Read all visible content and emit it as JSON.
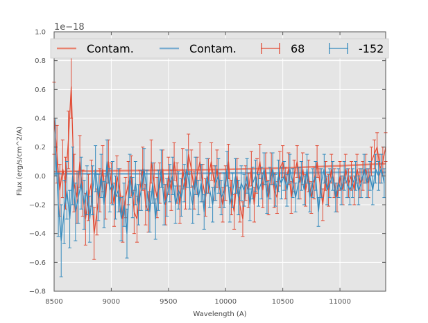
{
  "chart_data": {
    "type": "line",
    "title": "",
    "xlabel": "Wavelength (A)",
    "ylabel": "Flux (erg/s/cm^2/A)",
    "offset_label": "1e−18",
    "xlim": [
      8500,
      11400
    ],
    "ylim": [
      -0.8,
      1.0
    ],
    "xticks": [
      8500,
      9000,
      9500,
      10000,
      10500,
      11000
    ],
    "yticks": [
      -0.8,
      -0.6,
      -0.4,
      -0.2,
      0.0,
      0.2,
      0.4,
      0.6,
      0.8,
      1.0
    ],
    "ytick_labels": [
      "−0.8",
      "−0.6",
      "−0.4",
      "−0.2",
      "0.0",
      "0.2",
      "0.4",
      "0.6",
      "0.8",
      "1.0"
    ],
    "grid": true,
    "legend_position": "top",
    "colors": {
      "red": "#e24a33",
      "blue": "#348abd",
      "background": "#e5e5e5",
      "grid": "#ffffff"
    },
    "series": [
      {
        "name": "Contam.",
        "kind": "line",
        "color": "#e8826f",
        "x": [
          8500,
          9000,
          9500,
          10000,
          10500,
          11000,
          11400
        ],
        "values": [
          0.03,
          0.035,
          0.04,
          0.045,
          0.055,
          0.07,
          0.085
        ]
      },
      {
        "name": "Contam.",
        "kind": "line",
        "color": "#78acd0",
        "x": [
          8500,
          9000,
          9500,
          10000,
          10500,
          11000,
          11400
        ],
        "values": [
          0.015,
          0.015,
          0.015,
          0.02,
          0.02,
          0.025,
          0.025
        ]
      },
      {
        "name": "68",
        "kind": "errorbar",
        "color": "#e24a33",
        "x": [
          8500,
          8525,
          8550,
          8575,
          8600,
          8625,
          8650,
          8675,
          8700,
          8725,
          8750,
          8775,
          8800,
          8825,
          8850,
          8875,
          8900,
          8925,
          8950,
          8975,
          9000,
          9025,
          9050,
          9075,
          9100,
          9125,
          9150,
          9175,
          9200,
          9225,
          9250,
          9275,
          9300,
          9325,
          9350,
          9375,
          9400,
          9425,
          9450,
          9475,
          9500,
          9525,
          9550,
          9575,
          9600,
          9625,
          9650,
          9675,
          9700,
          9725,
          9750,
          9775,
          9800,
          9825,
          9850,
          9875,
          9900,
          9925,
          9950,
          9975,
          10000,
          10025,
          10050,
          10075,
          10100,
          10125,
          10150,
          10175,
          10200,
          10225,
          10250,
          10275,
          10300,
          10325,
          10350,
          10375,
          10400,
          10425,
          10450,
          10475,
          10500,
          10525,
          10550,
          10575,
          10600,
          10625,
          10650,
          10675,
          10700,
          10725,
          10750,
          10775,
          10800,
          10825,
          10850,
          10875,
          10900,
          10925,
          10950,
          10975,
          11000,
          11025,
          11050,
          11075,
          11100,
          11125,
          11150,
          11175,
          11200,
          11225,
          11250,
          11275,
          11300,
          11325,
          11350,
          11375,
          11400
        ],
        "values": [
          0.4,
          0.15,
          -0.1,
          0.05,
          -0.05,
          0.25,
          0.62,
          -0.05,
          -0.15,
          0.1,
          -0.12,
          -0.3,
          -0.15,
          -0.05,
          -0.4,
          -0.25,
          -0.1,
          0.05,
          -0.15,
          0.1,
          -0.05,
          -0.2,
          0.0,
          -0.1,
          -0.3,
          -0.15,
          -0.05,
          0.0,
          -0.25,
          -0.3,
          -0.1,
          0.05,
          -0.2,
          -0.25,
          0.1,
          -0.05,
          -0.15,
          -0.05,
          0.05,
          -0.2,
          0.0,
          -0.1,
          0.1,
          -0.05,
          -0.2,
          0.05,
          -0.1,
          0.15,
          0.05,
          -0.1,
          0.0,
          0.1,
          -0.05,
          -0.15,
          0.0,
          0.1,
          -0.05,
          0.05,
          -0.1,
          -0.2,
          -0.05,
          0.1,
          -0.15,
          -0.25,
          0.0,
          -0.2,
          -0.3,
          -0.05,
          -0.1,
          0.05,
          -0.2,
          0.0,
          0.1,
          -0.1,
          0.05,
          -0.15,
          0.05,
          -0.1,
          -0.15,
          0.05,
          0.1,
          -0.05,
          0.05,
          -0.15,
          0.0,
          0.1,
          -0.05,
          0.05,
          -0.1,
          0.0,
          -0.15,
          -0.05,
          0.1,
          -0.05,
          -0.2,
          0.0,
          -0.1,
          0.05,
          -0.05,
          -0.15,
          0.0,
          -0.1,
          0.05,
          -0.05,
          0.0,
          -0.1,
          0.05,
          -0.05,
          0.0,
          0.05,
          -0.05,
          0.1,
          0.15,
          0.2,
          0.05,
          0.1,
          0.2
        ],
        "errors": [
          0.25,
          0.2,
          0.18,
          0.2,
          0.18,
          0.2,
          0.22,
          0.2,
          0.18,
          0.18,
          0.16,
          0.18,
          0.16,
          0.16,
          0.18,
          0.16,
          0.15,
          0.16,
          0.15,
          0.15,
          0.14,
          0.15,
          0.14,
          0.15,
          0.16,
          0.14,
          0.15,
          0.14,
          0.15,
          0.16,
          0.14,
          0.15,
          0.14,
          0.14,
          0.15,
          0.14,
          0.14,
          0.14,
          0.13,
          0.14,
          0.13,
          0.14,
          0.13,
          0.14,
          0.13,
          0.14,
          0.13,
          0.14,
          0.13,
          0.13,
          0.13,
          0.13,
          0.13,
          0.13,
          0.12,
          0.13,
          0.12,
          0.13,
          0.12,
          0.12,
          0.12,
          0.12,
          0.12,
          0.12,
          0.12,
          0.12,
          0.12,
          0.12,
          0.12,
          0.12,
          0.12,
          0.12,
          0.12,
          0.12,
          0.11,
          0.12,
          0.11,
          0.12,
          0.11,
          0.12,
          0.11,
          0.11,
          0.11,
          0.11,
          0.11,
          0.11,
          0.11,
          0.11,
          0.11,
          0.11,
          0.11,
          0.11,
          0.11,
          0.1,
          0.11,
          0.1,
          0.11,
          0.1,
          0.1,
          0.1,
          0.1,
          0.1,
          0.1,
          0.1,
          0.1,
          0.1,
          0.1,
          0.1,
          0.1,
          0.1,
          0.1,
          0.1,
          0.1,
          0.1,
          0.1,
          0.1,
          0.1
        ]
      },
      {
        "name": "-152",
        "kind": "errorbar",
        "color": "#348abd",
        "x": [
          8512,
          8537,
          8562,
          8587,
          8612,
          8637,
          8662,
          8687,
          8712,
          8737,
          8762,
          8787,
          8812,
          8837,
          8862,
          8887,
          8912,
          8937,
          8962,
          8987,
          9012,
          9037,
          9062,
          9087,
          9112,
          9137,
          9162,
          9187,
          9212,
          9237,
          9262,
          9287,
          9312,
          9337,
          9362,
          9387,
          9412,
          9437,
          9462,
          9487,
          9512,
          9537,
          9562,
          9587,
          9612,
          9637,
          9662,
          9687,
          9712,
          9737,
          9762,
          9787,
          9812,
          9837,
          9862,
          9887,
          9912,
          9937,
          9962,
          9987,
          10012,
          10037,
          10062,
          10087,
          10112,
          10137,
          10162,
          10187,
          10212,
          10237,
          10262,
          10287,
          10312,
          10337,
          10362,
          10387,
          10412,
          10437,
          10462,
          10487,
          10512,
          10537,
          10562,
          10587,
          10612,
          10637,
          10662,
          10687,
          10712,
          10737,
          10762,
          10787,
          10812,
          10837,
          10862,
          10887,
          10912,
          10937,
          10962,
          10987,
          11012,
          11037,
          11062,
          11087,
          11112,
          11137,
          11162,
          11187,
          11212,
          11237,
          11262,
          11287,
          11312,
          11337,
          11362,
          11387
        ],
        "values": [
          0.2,
          -0.2,
          -0.45,
          -0.25,
          -0.1,
          -0.3,
          0.0,
          -0.25,
          -0.15,
          -0.05,
          -0.2,
          -0.1,
          -0.3,
          -0.1,
          0.05,
          -0.15,
          0.0,
          -0.2,
          0.1,
          -0.1,
          -0.05,
          -0.15,
          -0.1,
          -0.3,
          -0.2,
          -0.4,
          0.0,
          -0.15,
          -0.05,
          -0.2,
          -0.1,
          0.05,
          -0.1,
          -0.25,
          -0.05,
          -0.3,
          -0.1,
          0.05,
          -0.2,
          -0.15,
          -0.05,
          0.0,
          -0.2,
          -0.1,
          -0.15,
          -0.05,
          0.05,
          -0.1,
          -0.2,
          0.0,
          -0.15,
          -0.05,
          -0.25,
          0.0,
          -0.1,
          -0.2,
          -0.05,
          0.0,
          -0.15,
          -0.1,
          0.05,
          -0.2,
          -0.1,
          0.0,
          -0.15,
          -0.05,
          -0.1,
          0.0,
          -0.2,
          -0.05,
          0.0,
          -0.1,
          -0.05,
          0.05,
          -0.15,
          -0.05,
          0.05,
          -0.1,
          0.0,
          -0.05,
          0.0,
          -0.1,
          0.05,
          -0.05,
          -0.15,
          -0.05,
          0.0,
          -0.1,
          0.05,
          -0.15,
          -0.05,
          0.0,
          -0.25,
          -0.05,
          0.05,
          -0.1,
          -0.05,
          0.0,
          -0.15,
          -0.05,
          -0.1,
          0.0,
          -0.05,
          -0.1,
          -0.05,
          0.0,
          -0.1,
          -0.05,
          0.05,
          -0.05,
          0.0,
          -0.1,
          0.05,
          0.0,
          0.05,
          -0.05
        ],
        "errors": [
          0.2,
          0.22,
          0.25,
          0.22,
          0.2,
          0.2,
          0.2,
          0.2,
          0.18,
          0.18,
          0.17,
          0.17,
          0.16,
          0.17,
          0.16,
          0.16,
          0.15,
          0.16,
          0.15,
          0.15,
          0.15,
          0.15,
          0.15,
          0.15,
          0.15,
          0.17,
          0.15,
          0.14,
          0.15,
          0.14,
          0.14,
          0.14,
          0.14,
          0.14,
          0.14,
          0.14,
          0.14,
          0.13,
          0.14,
          0.13,
          0.13,
          0.13,
          0.13,
          0.13,
          0.13,
          0.13,
          0.13,
          0.13,
          0.13,
          0.13,
          0.12,
          0.13,
          0.12,
          0.12,
          0.12,
          0.12,
          0.12,
          0.12,
          0.12,
          0.12,
          0.12,
          0.12,
          0.12,
          0.12,
          0.12,
          0.12,
          0.11,
          0.12,
          0.11,
          0.11,
          0.11,
          0.11,
          0.11,
          0.11,
          0.11,
          0.11,
          0.11,
          0.11,
          0.11,
          0.11,
          0.1,
          0.11,
          0.1,
          0.1,
          0.1,
          0.11,
          0.1,
          0.1,
          0.1,
          0.1,
          0.1,
          0.1,
          0.1,
          0.1,
          0.1,
          0.1,
          0.1,
          0.1,
          0.1,
          0.1,
          0.1,
          0.1,
          0.1,
          0.1,
          0.1,
          0.1,
          0.1,
          0.1,
          0.1,
          0.1,
          0.1,
          0.1,
          0.1,
          0.1,
          0.1,
          0.1
        ]
      }
    ]
  }
}
